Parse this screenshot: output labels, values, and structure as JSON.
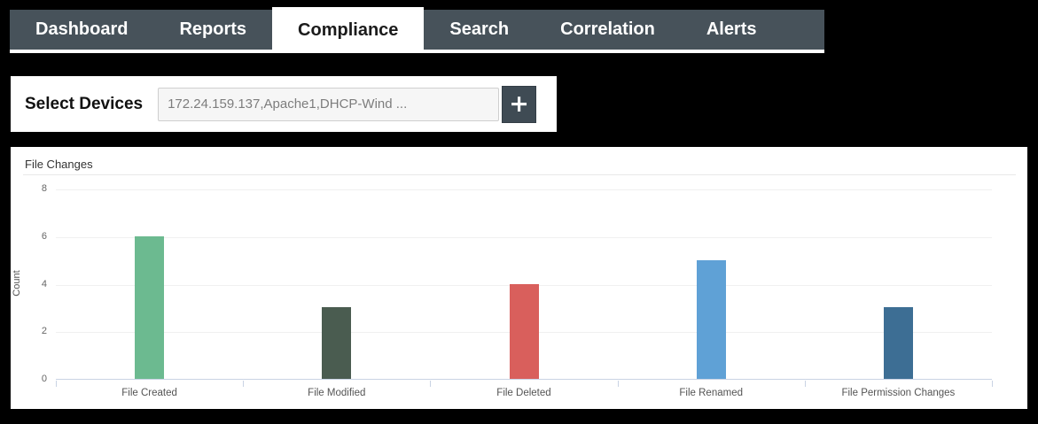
{
  "nav": {
    "tabs": [
      {
        "label": "Dashboard",
        "active": false
      },
      {
        "label": "Reports",
        "active": false
      },
      {
        "label": "Compliance",
        "active": true
      },
      {
        "label": "Search",
        "active": false
      },
      {
        "label": "Correlation",
        "active": false
      },
      {
        "label": "Alerts",
        "active": false
      }
    ]
  },
  "device_selector": {
    "label": "Select Devices",
    "value": "172.24.159.137,Apache1,DHCP-Wind ...",
    "add_button": "+"
  },
  "chart_data": {
    "type": "bar",
    "title": "File Changes",
    "categories": [
      "File Created",
      "File Modified",
      "File Deleted",
      "File Renamed",
      "File Permission Changes"
    ],
    "values": [
      6,
      3,
      4,
      5,
      3
    ],
    "bar_colors": [
      "#6cba90",
      "#4a5c50",
      "#d95f5c",
      "#5fa1d6",
      "#3d6e94"
    ],
    "xlabel": "",
    "ylabel": "Count",
    "ylim": [
      0,
      8
    ],
    "yticks": [
      0,
      2,
      4,
      6,
      8
    ],
    "grid": true,
    "legend": false
  },
  "colors": {
    "background": "#000000",
    "nav_bg": "#47525a",
    "active_tab_bg": "#ffffff",
    "panel_bg": "#ffffff",
    "axis_line": "#c9d3e4",
    "gridline": "#f0f0f0",
    "add_button_bg": "#3f4b54"
  }
}
